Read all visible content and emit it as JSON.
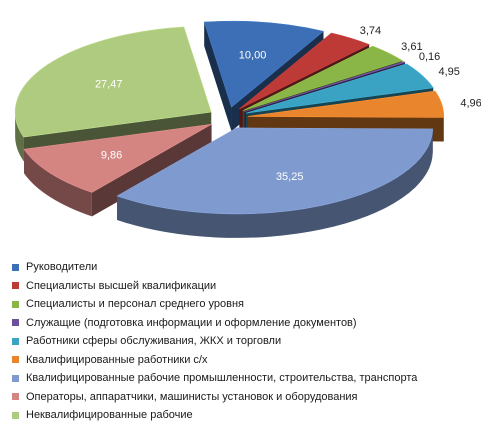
{
  "chart_data": {
    "type": "pie",
    "style": "3d-exploded",
    "legend_position": "bottom",
    "slices": [
      {
        "name": "Руководители",
        "value": 10.0,
        "label": "10,00",
        "color": "#3d6fb6"
      },
      {
        "name": "Специалисты высшей квалификации",
        "value": 3.74,
        "label": "3,74",
        "color": "#bd3a37"
      },
      {
        "name": "Специалисты и персонал среднего уровня",
        "value": 3.61,
        "label": "3,61",
        "color": "#8ab547"
      },
      {
        "name": "Служащие (подготовка  информации и оформление документов)",
        "value": 0.16,
        "label": "0,16",
        "color": "#6d4f9b"
      },
      {
        "name": "Работники сферы обслуживания,  ЖКХ и торговли",
        "value": 4.95,
        "label": "4,95",
        "color": "#3aa3c4"
      },
      {
        "name": "Квалифицированные  работники с/х",
        "value": 4.96,
        "label": "4,96",
        "color": "#e9852d"
      },
      {
        "name": "Квалифицированные  рабочие промышленности, строительства, транспорта",
        "value": 35.25,
        "label": "35,25",
        "color": "#7f9ace"
      },
      {
        "name": "Операторы, аппаратчики,  машинисты установок и оборудования",
        "value": 9.86,
        "label": "9,86",
        "color": "#d48582"
      },
      {
        "name": "Неквалифицированные  рабочие",
        "value": 27.47,
        "label": "27,47",
        "color": "#aecb80"
      }
    ]
  }
}
